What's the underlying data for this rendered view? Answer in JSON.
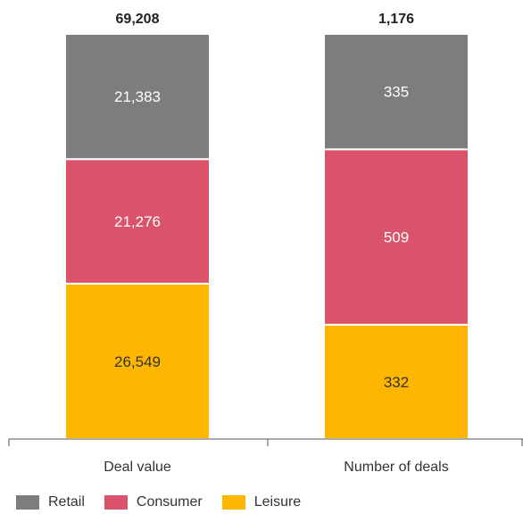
{
  "chart_data": {
    "type": "bar",
    "stacked": true,
    "categories": [
      "Deal value",
      "Number of deals"
    ],
    "totals": [
      "69,208",
      "1,176"
    ],
    "series": [
      {
        "name": "Leisure",
        "color": "#FFB600",
        "label_color": "#333333",
        "values": [
          26549,
          332
        ],
        "labels": [
          "26,549",
          "332"
        ]
      },
      {
        "name": "Consumer",
        "color": "#DB536A",
        "label_color": "#ffffff",
        "values": [
          21276,
          509
        ],
        "labels": [
          "21,276",
          "509"
        ]
      },
      {
        "name": "Retail",
        "color": "#7D7D7D",
        "label_color": "#ffffff",
        "values": [
          21383,
          335
        ],
        "labels": [
          "21,383",
          "335"
        ]
      }
    ],
    "legend_order": [
      "Retail",
      "Consumer",
      "Leisure"
    ],
    "legend_position": "bottom-left",
    "grid": false
  }
}
